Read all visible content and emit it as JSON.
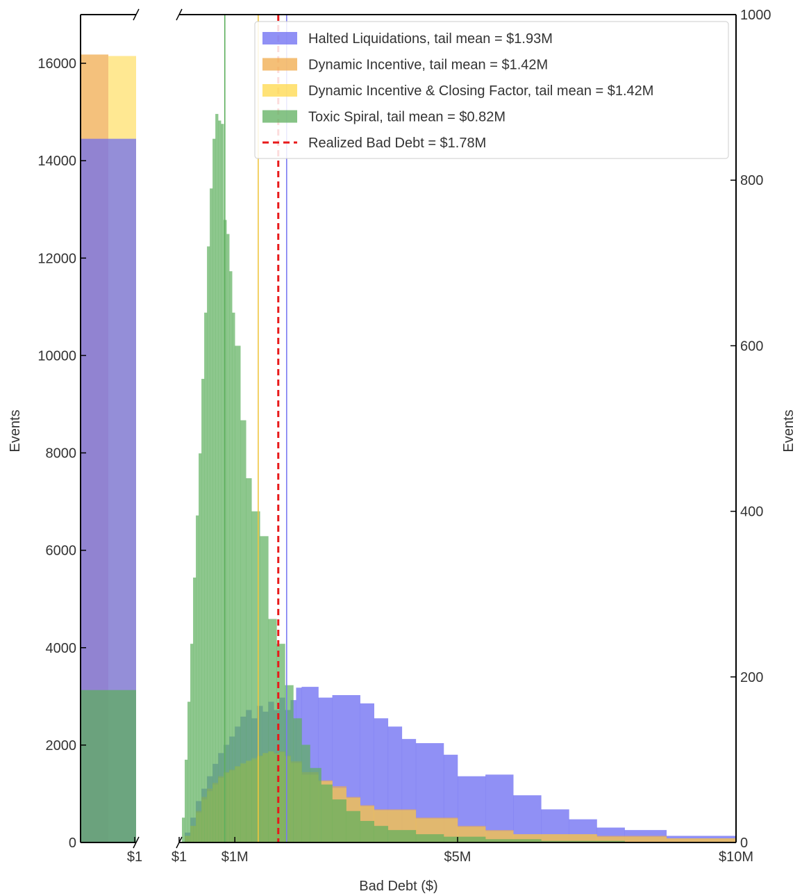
{
  "chart_data": {
    "type": "bar",
    "xlabel": "Bad Debt ($)",
    "left_ylabel": "Events",
    "right_ylabel": "Events",
    "grid": false,
    "legend_position": "top-right",
    "left_panel": {
      "ylim": [
        0,
        17000
      ],
      "y_ticks": [
        0,
        2000,
        4000,
        6000,
        8000,
        10000,
        12000,
        14000,
        16000
      ],
      "y_tick_labels": [
        "0",
        "2000",
        "4000",
        "6000",
        "8000",
        "10000",
        "12000",
        "14000",
        "16000"
      ],
      "x_tick_label": "$1",
      "bars": [
        {
          "series": "Halted Liquidations",
          "events": 14450
        },
        {
          "series": "Dynamic Incentive",
          "events": 16180
        },
        {
          "series": "Dynamic Incentive & Closing Factor",
          "events": 16150
        },
        {
          "series": "Toxic Spiral",
          "events": 3130
        }
      ]
    },
    "main_panel": {
      "xlim": [
        0,
        10
      ],
      "x_unit": "$M",
      "ylim": [
        0,
        1000
      ],
      "y_ticks": [
        0,
        200,
        400,
        600,
        800,
        1000
      ],
      "y_tick_labels": [
        "0",
        "200",
        "400",
        "600",
        "800",
        "1000"
      ],
      "x_ticks": [
        0,
        1,
        5,
        10
      ],
      "x_tick_labels": [
        "$1",
        "$1M",
        "$5M",
        "$10M"
      ]
    },
    "series": [
      {
        "name": "Halted Liquidations",
        "color": "#6b6bf2",
        "tail_mean": 1.93,
        "bins": [
          [
            0.1,
            0.2,
            12
          ],
          [
            0.2,
            0.3,
            30
          ],
          [
            0.3,
            0.4,
            50
          ],
          [
            0.4,
            0.5,
            65
          ],
          [
            0.5,
            0.6,
            80
          ],
          [
            0.6,
            0.7,
            95
          ],
          [
            0.7,
            0.8,
            108
          ],
          [
            0.8,
            0.9,
            118
          ],
          [
            0.9,
            1.0,
            128
          ],
          [
            1.0,
            1.1,
            140
          ],
          [
            1.1,
            1.2,
            152
          ],
          [
            1.2,
            1.3,
            160
          ],
          [
            1.3,
            1.4,
            150
          ],
          [
            1.4,
            1.5,
            165
          ],
          [
            1.5,
            1.6,
            158
          ],
          [
            1.6,
            1.7,
            170
          ],
          [
            1.7,
            1.8,
            160
          ],
          [
            1.8,
            1.9,
            175
          ],
          [
            1.9,
            2.0,
            160
          ],
          [
            2.0,
            2.1,
            172
          ],
          [
            2.1,
            2.2,
            187
          ],
          [
            2.2,
            2.5,
            188
          ],
          [
            2.5,
            2.75,
            175
          ],
          [
            2.75,
            3.25,
            178
          ],
          [
            3.25,
            3.5,
            168
          ],
          [
            3.5,
            3.75,
            150
          ],
          [
            3.75,
            4.0,
            140
          ],
          [
            4.0,
            4.25,
            125
          ],
          [
            4.25,
            4.75,
            120
          ],
          [
            4.75,
            5.0,
            106
          ],
          [
            5.0,
            5.5,
            80
          ],
          [
            5.5,
            6.0,
            82
          ],
          [
            6.0,
            6.5,
            57
          ],
          [
            6.5,
            7.0,
            40
          ],
          [
            7.0,
            7.5,
            28
          ],
          [
            7.5,
            8.0,
            18
          ],
          [
            8.0,
            8.75,
            15
          ],
          [
            8.75,
            10.0,
            8
          ]
        ]
      },
      {
        "name": "Dynamic Incentive",
        "color": "#f0a94a",
        "tail_mean": 1.42,
        "bins": [
          [
            0.1,
            0.2,
            8
          ],
          [
            0.2,
            0.3,
            20
          ],
          [
            0.3,
            0.4,
            38
          ],
          [
            0.4,
            0.5,
            55
          ],
          [
            0.5,
            0.6,
            65
          ],
          [
            0.6,
            0.7,
            72
          ],
          [
            0.7,
            0.8,
            80
          ],
          [
            0.8,
            0.9,
            85
          ],
          [
            0.9,
            1.0,
            88
          ],
          [
            1.0,
            1.1,
            92
          ],
          [
            1.1,
            1.2,
            95
          ],
          [
            1.2,
            1.3,
            98
          ],
          [
            1.3,
            1.4,
            100
          ],
          [
            1.4,
            1.5,
            105
          ],
          [
            1.5,
            1.6,
            108
          ],
          [
            1.6,
            1.7,
            110
          ],
          [
            1.7,
            1.8,
            108
          ],
          [
            1.8,
            1.9,
            110
          ],
          [
            1.9,
            2.0,
            105
          ],
          [
            2.0,
            2.2,
            98
          ],
          [
            2.2,
            2.5,
            85
          ],
          [
            2.5,
            2.75,
            75
          ],
          [
            2.75,
            3.0,
            68
          ],
          [
            3.0,
            3.25,
            55
          ],
          [
            3.25,
            3.5,
            45
          ],
          [
            3.5,
            4.25,
            40
          ],
          [
            4.25,
            5.0,
            30
          ],
          [
            5.0,
            5.5,
            20
          ],
          [
            5.5,
            6.0,
            15
          ],
          [
            6.0,
            7.5,
            10
          ],
          [
            7.5,
            8.75,
            8
          ],
          [
            8.75,
            10.0,
            5
          ]
        ]
      },
      {
        "name": "Dynamic Incentive & Closing Factor",
        "color": "#ffd84a",
        "tail_mean": 1.42,
        "bins": [
          [
            0.1,
            0.2,
            8
          ],
          [
            0.2,
            0.3,
            20
          ],
          [
            0.3,
            0.4,
            36
          ],
          [
            0.4,
            0.5,
            52
          ],
          [
            0.5,
            0.6,
            62
          ],
          [
            0.6,
            0.7,
            70
          ],
          [
            0.7,
            0.8,
            78
          ],
          [
            0.8,
            0.9,
            84
          ],
          [
            0.9,
            1.0,
            87
          ],
          [
            1.0,
            1.1,
            92
          ],
          [
            1.1,
            1.2,
            96
          ],
          [
            1.2,
            1.3,
            99
          ],
          [
            1.3,
            1.4,
            102
          ],
          [
            1.4,
            1.5,
            104
          ],
          [
            1.5,
            1.6,
            108
          ],
          [
            1.6,
            1.7,
            110
          ],
          [
            1.7,
            1.8,
            107
          ],
          [
            1.8,
            1.9,
            109
          ],
          [
            1.9,
            2.0,
            104
          ],
          [
            2.0,
            2.2,
            96
          ],
          [
            2.2,
            2.5,
            82
          ],
          [
            2.5,
            2.75,
            74
          ],
          [
            2.75,
            3.0,
            66
          ],
          [
            3.0,
            3.25,
            54
          ],
          [
            3.25,
            3.5,
            44
          ],
          [
            3.5,
            4.25,
            39
          ],
          [
            4.25,
            5.0,
            29
          ],
          [
            5.0,
            5.5,
            19
          ],
          [
            5.5,
            6.0,
            14
          ],
          [
            6.0,
            7.5,
            10
          ],
          [
            7.5,
            8.75,
            7
          ],
          [
            8.75,
            10.0,
            5
          ]
        ]
      },
      {
        "name": "Toxic Spiral",
        "color": "#5daf5d",
        "tail_mean": 0.82,
        "bins": [
          [
            0.05,
            0.1,
            30
          ],
          [
            0.1,
            0.15,
            100
          ],
          [
            0.15,
            0.2,
            170
          ],
          [
            0.2,
            0.25,
            240
          ],
          [
            0.25,
            0.3,
            320
          ],
          [
            0.3,
            0.35,
            395
          ],
          [
            0.35,
            0.4,
            470
          ],
          [
            0.4,
            0.45,
            560
          ],
          [
            0.45,
            0.5,
            640
          ],
          [
            0.5,
            0.55,
            720
          ],
          [
            0.55,
            0.6,
            790
          ],
          [
            0.6,
            0.65,
            850
          ],
          [
            0.65,
            0.7,
            880
          ],
          [
            0.7,
            0.75,
            872
          ],
          [
            0.75,
            0.8,
            868
          ],
          [
            0.8,
            0.85,
            752
          ],
          [
            0.85,
            0.9,
            735
          ],
          [
            0.9,
            0.95,
            690
          ],
          [
            0.95,
            1.0,
            640
          ],
          [
            1.0,
            1.1,
            600
          ],
          [
            1.1,
            1.2,
            510
          ],
          [
            1.2,
            1.3,
            440
          ],
          [
            1.3,
            1.45,
            400
          ],
          [
            1.45,
            1.6,
            370
          ],
          [
            1.6,
            1.75,
            270
          ],
          [
            1.75,
            1.9,
            240
          ],
          [
            1.9,
            2.05,
            190
          ],
          [
            2.05,
            2.2,
            150
          ],
          [
            2.2,
            2.35,
            118
          ],
          [
            2.35,
            2.55,
            90
          ],
          [
            2.55,
            2.75,
            70
          ],
          [
            2.75,
            3.0,
            52
          ],
          [
            3.0,
            3.25,
            38
          ],
          [
            3.25,
            3.5,
            26
          ],
          [
            3.5,
            3.75,
            20
          ],
          [
            3.75,
            4.25,
            15
          ],
          [
            4.25,
            4.75,
            10
          ],
          [
            4.75,
            5.5,
            7
          ],
          [
            5.5,
            6.5,
            4
          ],
          [
            6.5,
            8.0,
            2
          ]
        ]
      }
    ],
    "vertical_lines": [
      {
        "name": "Toxic Spiral tail mean",
        "x": 0.82,
        "color": "#5daf5d",
        "style": "solid"
      },
      {
        "name": "Dynamic Incentive tail mean",
        "x": 1.42,
        "color": "#f0c640",
        "style": "solid"
      },
      {
        "name": "Realized Bad Debt",
        "x": 1.78,
        "color": "#e8191a",
        "style": "dashed"
      },
      {
        "name": "Halted Liquidations tail mean",
        "x": 1.93,
        "color": "#7a7af2",
        "style": "solid"
      }
    ],
    "legend": [
      {
        "label": "Halted Liquidations, tail mean = $1.93M",
        "color": "#6b6bf2",
        "kind": "patch"
      },
      {
        "label": "Dynamic Incentive, tail mean = $1.42M",
        "color": "#f0a94a",
        "kind": "patch"
      },
      {
        "label": "Dynamic Incentive & Closing Factor, tail mean = $1.42M",
        "color": "#ffd84a",
        "kind": "patch"
      },
      {
        "label": "Toxic Spiral, tail mean = $0.82M",
        "color": "#5daf5d",
        "kind": "patch"
      },
      {
        "label": "Realized Bad Debt = $1.78M",
        "color": "#e8191a",
        "kind": "dashed-line"
      }
    ]
  }
}
